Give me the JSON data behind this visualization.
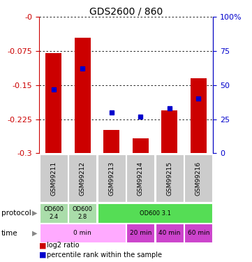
{
  "title": "GDS2600 / 860",
  "samples": [
    "GSM99211",
    "GSM99212",
    "GSM99213",
    "GSM99214",
    "GSM99215",
    "GSM99216"
  ],
  "log2_ratios": [
    -0.08,
    -0.045,
    -0.248,
    -0.267,
    -0.205,
    -0.135
  ],
  "percentile_ranks": [
    47,
    62,
    30,
    27,
    33,
    40
  ],
  "ylim_left": [
    -0.3,
    0.0
  ],
  "ylim_right": [
    0,
    100
  ],
  "left_ticks": [
    0.0,
    -0.075,
    -0.15,
    -0.225,
    -0.3
  ],
  "right_ticks": [
    0,
    25,
    50,
    75,
    100
  ],
  "bar_color": "#cc0000",
  "dot_color": "#0000cc",
  "bar_bottom": -0.3,
  "left_label_color": "#cc0000",
  "right_label_color": "#0000cc",
  "sample_bg": "#cccccc",
  "protocol_data": [
    {
      "label": "OD600\n2.4",
      "start": 0,
      "end": 1,
      "bg": "#aaddaa"
    },
    {
      "label": "OD600\n2.8",
      "start": 1,
      "end": 2,
      "bg": "#aaddaa"
    },
    {
      "label": "OD600 3.1",
      "start": 2,
      "end": 6,
      "bg": "#55dd55"
    }
  ],
  "time_data": [
    {
      "label": "0 min",
      "start": 0,
      "end": 3,
      "bg": "#ffaaff"
    },
    {
      "label": "20 min",
      "start": 3,
      "end": 4,
      "bg": "#cc44cc"
    },
    {
      "label": "40 min",
      "start": 4,
      "end": 5,
      "bg": "#cc44cc"
    },
    {
      "label": "60 min",
      "start": 5,
      "end": 6,
      "bg": "#cc44cc"
    }
  ],
  "legend_red_label": "log2 ratio",
  "legend_blue_label": "percentile rank within the sample",
  "protocol_label": "protocol",
  "time_label": "time"
}
